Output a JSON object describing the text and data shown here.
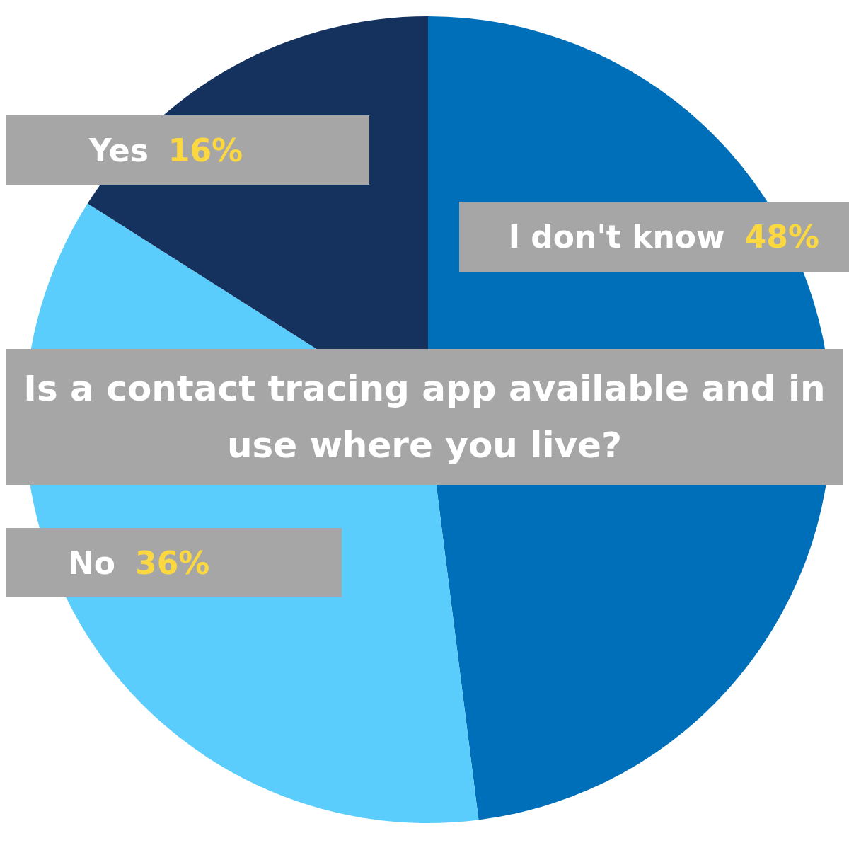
{
  "chart_data": {
    "type": "pie",
    "title": "Is a contact tracing app available and in use where you live?",
    "categories": [
      "I don't know",
      "No",
      "Yes"
    ],
    "values": [
      48,
      36,
      16
    ],
    "value_labels": [
      "48%",
      "36%",
      "16%"
    ],
    "colors": [
      "#006fb9",
      "#5bcdfc",
      "#15325f"
    ]
  }
}
